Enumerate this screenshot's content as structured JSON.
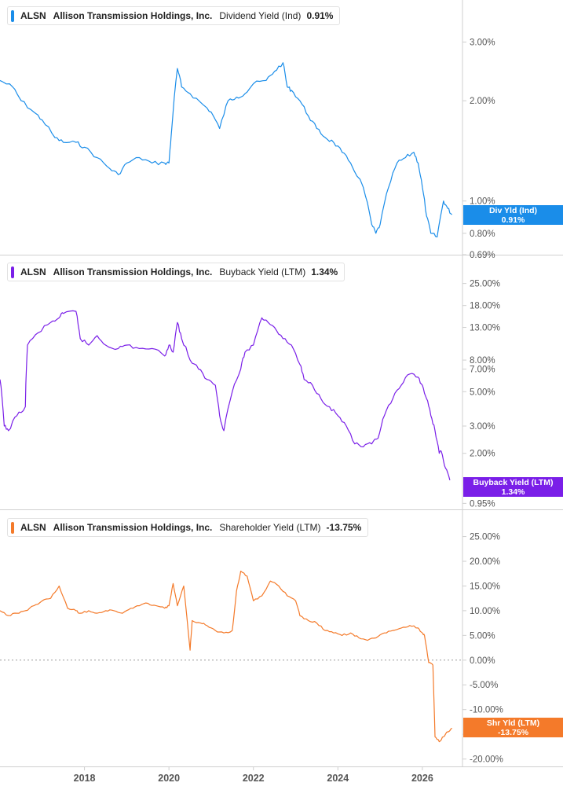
{
  "colors": {
    "dividend": "#1a8de9",
    "buyback": "#7a1fe8",
    "shareholder": "#f47a2a",
    "grid": "#d7d7d7",
    "zero_line": "#999999"
  },
  "x_ticks": [
    "2018",
    "2020",
    "2022",
    "2024",
    "2026"
  ],
  "panels": [
    {
      "ticker": "ALSN",
      "company": "Allison Transmission Holdings, Inc.",
      "metric": "Dividend Yield (Ind)",
      "value": "0.91%",
      "flag_line1": "Div Yld (Ind)",
      "flag_line2": "0.91%",
      "ticks": [
        "3.00%",
        "2.00%",
        "1.00%",
        "0.80%",
        "0.69%"
      ]
    },
    {
      "ticker": "ALSN",
      "company": "Allison Transmission Holdings, Inc.",
      "metric": "Buyback Yield (LTM)",
      "value": "1.34%",
      "flag_line1": "Buyback Yield (LTM)",
      "flag_line2": "1.34%",
      "ticks": [
        "25.00%",
        "18.00%",
        "13.00%",
        "8.00%",
        "7.00%",
        "5.00%",
        "3.00%",
        "2.00%",
        "0.95%"
      ]
    },
    {
      "ticker": "ALSN",
      "company": "Allison Transmission Holdings, Inc.",
      "metric": "Shareholder Yield (LTM)",
      "value": "-13.75%",
      "flag_line1": "Shr Yld (LTM)",
      "flag_line2": "-13.75%",
      "ticks": [
        "25.00%",
        "20.00%",
        "15.00%",
        "10.00%",
        "5.00%",
        "0.00%",
        "-5.00%",
        "-10.00%",
        "-15.00%",
        "-20.00%"
      ]
    }
  ],
  "chart_data": [
    {
      "type": "line",
      "title": "ALSN Allison Transmission Holdings, Inc. Dividend Yield (Ind) 0.91%",
      "y_scale": "log",
      "ylim": [
        0.69,
        3.8
      ],
      "y_ticks": [
        3.0,
        2.0,
        1.0,
        0.8,
        0.69
      ],
      "x": [
        2016.0,
        2016.3,
        2016.5,
        2016.8,
        2017.0,
        2017.3,
        2017.5,
        2017.8,
        2018.0,
        2018.3,
        2018.6,
        2018.8,
        2019.0,
        2019.3,
        2019.6,
        2019.9,
        2020.0,
        2020.05,
        2020.2,
        2020.3,
        2020.5,
        2020.8,
        2021.0,
        2021.2,
        2021.4,
        2021.6,
        2021.8,
        2022.0,
        2022.3,
        2022.5,
        2022.7,
        2022.8,
        2022.9,
        2023.1,
        2023.3,
        2023.5,
        2023.7,
        2023.9,
        2024.1,
        2024.3,
        2024.6,
        2024.8,
        2024.9,
        2025.0,
        2025.2,
        2025.4,
        2025.6,
        2025.8,
        2025.9,
        2026.0,
        2026.1,
        2026.2,
        2026.35,
        2026.5,
        2026.6,
        2026.7
      ],
      "y": [
        2.3,
        2.2,
        2.0,
        1.85,
        1.75,
        1.55,
        1.5,
        1.5,
        1.45,
        1.35,
        1.25,
        1.2,
        1.3,
        1.35,
        1.3,
        1.3,
        1.3,
        1.55,
        2.5,
        2.2,
        2.1,
        1.95,
        1.85,
        1.65,
        2.0,
        2.05,
        2.1,
        2.25,
        2.3,
        2.45,
        2.6,
        2.2,
        2.15,
        2.0,
        1.8,
        1.65,
        1.55,
        1.5,
        1.4,
        1.3,
        1.1,
        0.85,
        0.8,
        0.85,
        1.1,
        1.3,
        1.35,
        1.4,
        1.3,
        1.1,
        0.9,
        0.8,
        0.78,
        1.0,
        0.95,
        0.91
      ]
    },
    {
      "type": "line",
      "title": "ALSN Allison Transmission Holdings, Inc. Buyback Yield (LTM) 1.34%",
      "y_scale": "log",
      "ylim": [
        0.9,
        30
      ],
      "y_ticks": [
        25,
        18,
        13,
        8,
        7,
        5,
        3,
        2,
        0.95
      ],
      "x": [
        2016.0,
        2016.1,
        2016.2,
        2016.4,
        2016.6,
        2016.65,
        2016.9,
        2017.2,
        2017.4,
        2017.5,
        2017.8,
        2017.9,
        2018.1,
        2018.3,
        2018.5,
        2018.8,
        2019.0,
        2019.3,
        2019.6,
        2019.9,
        2020.0,
        2020.1,
        2020.2,
        2020.3,
        2020.5,
        2020.7,
        2020.9,
        2021.1,
        2021.2,
        2021.3,
        2021.5,
        2021.7,
        2021.8,
        2022.0,
        2022.2,
        2022.3,
        2022.5,
        2022.7,
        2022.9,
        2023.1,
        2023.2,
        2023.4,
        2023.6,
        2023.8,
        2024.0,
        2024.2,
        2024.4,
        2024.6,
        2024.8,
        2024.95,
        2025.1,
        2025.3,
        2025.5,
        2025.7,
        2025.9,
        2026.0,
        2026.1,
        2026.2,
        2026.3,
        2026.4,
        2026.45,
        2026.55,
        2026.65
      ],
      "y": [
        6.0,
        3.0,
        2.8,
        3.5,
        4.0,
        10.0,
        12.0,
        14.0,
        15.0,
        16.0,
        16.5,
        11.0,
        10.0,
        11.5,
        10.0,
        9.5,
        10.0,
        9.5,
        9.5,
        8.5,
        10.0,
        9.0,
        14.0,
        11.0,
        8.0,
        7.0,
        6.0,
        5.5,
        3.5,
        2.8,
        5.0,
        7.0,
        9.0,
        10.0,
        15.0,
        14.5,
        13.0,
        11.0,
        10.0,
        7.5,
        6.0,
        5.5,
        4.5,
        4.0,
        3.5,
        3.0,
        2.3,
        2.2,
        2.3,
        2.5,
        3.5,
        4.5,
        5.5,
        6.5,
        6.2,
        5.5,
        4.5,
        3.5,
        2.8,
        2.0,
        2.05,
        1.6,
        1.34
      ]
    },
    {
      "type": "line",
      "title": "ALSN Allison Transmission Holdings, Inc. Shareholder Yield (LTM) -13.75%",
      "ylim": [
        -21.5,
        27
      ],
      "y_ticks": [
        25,
        20,
        15,
        10,
        5,
        0,
        -5,
        -10,
        -15,
        -20
      ],
      "x": [
        2016.0,
        2016.2,
        2016.4,
        2016.6,
        2016.8,
        2017.0,
        2017.2,
        2017.4,
        2017.6,
        2017.8,
        2017.9,
        2018.1,
        2018.3,
        2018.5,
        2018.7,
        2018.9,
        2019.1,
        2019.3,
        2019.5,
        2019.7,
        2019.9,
        2020.0,
        2020.1,
        2020.2,
        2020.35,
        2020.5,
        2020.55,
        2020.75,
        2020.9,
        2021.1,
        2021.3,
        2021.5,
        2021.6,
        2021.7,
        2021.85,
        2022.0,
        2022.2,
        2022.4,
        2022.6,
        2022.8,
        2023.0,
        2023.1,
        2023.3,
        2023.5,
        2023.7,
        2023.9,
        2024.1,
        2024.3,
        2024.5,
        2024.7,
        2024.9,
        2025.1,
        2025.3,
        2025.5,
        2025.7,
        2025.9,
        2026.0,
        2026.05,
        2026.15,
        2026.25,
        2026.3,
        2026.4,
        2026.5,
        2026.6,
        2026.7
      ],
      "y": [
        10.0,
        9.0,
        9.5,
        10.0,
        11.0,
        12.0,
        12.5,
        15.0,
        10.5,
        10.0,
        9.5,
        10.0,
        9.5,
        10.0,
        10.0,
        9.5,
        10.5,
        11.0,
        11.5,
        11.0,
        10.5,
        11.0,
        15.5,
        11.0,
        15.0,
        2.0,
        8.0,
        7.5,
        7.0,
        6.0,
        5.5,
        6.0,
        14.0,
        18.0,
        17.0,
        12.0,
        13.0,
        16.0,
        15.0,
        13.0,
        12.0,
        9.0,
        8.0,
        7.5,
        6.0,
        5.5,
        5.0,
        5.5,
        4.5,
        4.0,
        4.5,
        5.5,
        6.0,
        6.5,
        7.0,
        6.5,
        5.5,
        5.0,
        -0.5,
        -1.0,
        -15.5,
        -16.5,
        -15.5,
        -14.5,
        -13.75
      ]
    }
  ]
}
